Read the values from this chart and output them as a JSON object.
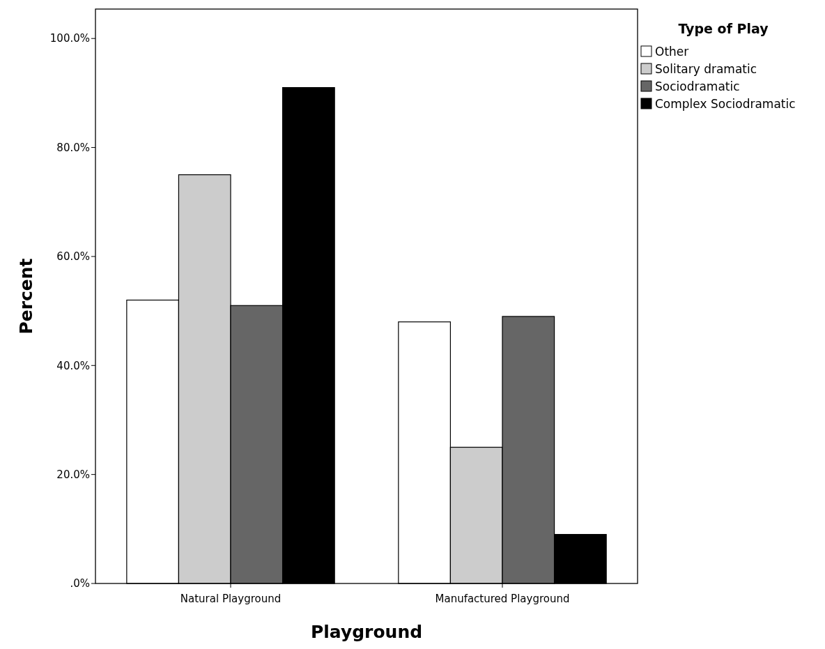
{
  "chart_data": {
    "type": "bar",
    "xlabel": "Playground",
    "ylabel": "Percent",
    "legend_title": "Type of Play",
    "categories": [
      "Natural Playground",
      "Manufactured Playground"
    ],
    "series": [
      {
        "name": "Other",
        "color": "#ffffff",
        "values": [
          52,
          48
        ]
      },
      {
        "name": "Solitary dramatic",
        "color": "#cccccc",
        "values": [
          75,
          25
        ]
      },
      {
        "name": "Sociodramatic",
        "color": "#666666",
        "values": [
          51,
          49
        ]
      },
      {
        "name": "Complex Sociodramatic",
        "color": "#000000",
        "values": [
          91,
          9
        ]
      }
    ],
    "ylim": [
      0,
      105.4
    ],
    "yticks": [
      {
        "value": 0,
        "label": ".0%"
      },
      {
        "value": 20,
        "label": "20.0%"
      },
      {
        "value": 40,
        "label": "40.0%"
      },
      {
        "value": 60,
        "label": "60.0%"
      },
      {
        "value": 80,
        "label": "80.0%"
      },
      {
        "value": 100,
        "label": "100.0%"
      }
    ],
    "grid": false,
    "legend": "top right"
  }
}
